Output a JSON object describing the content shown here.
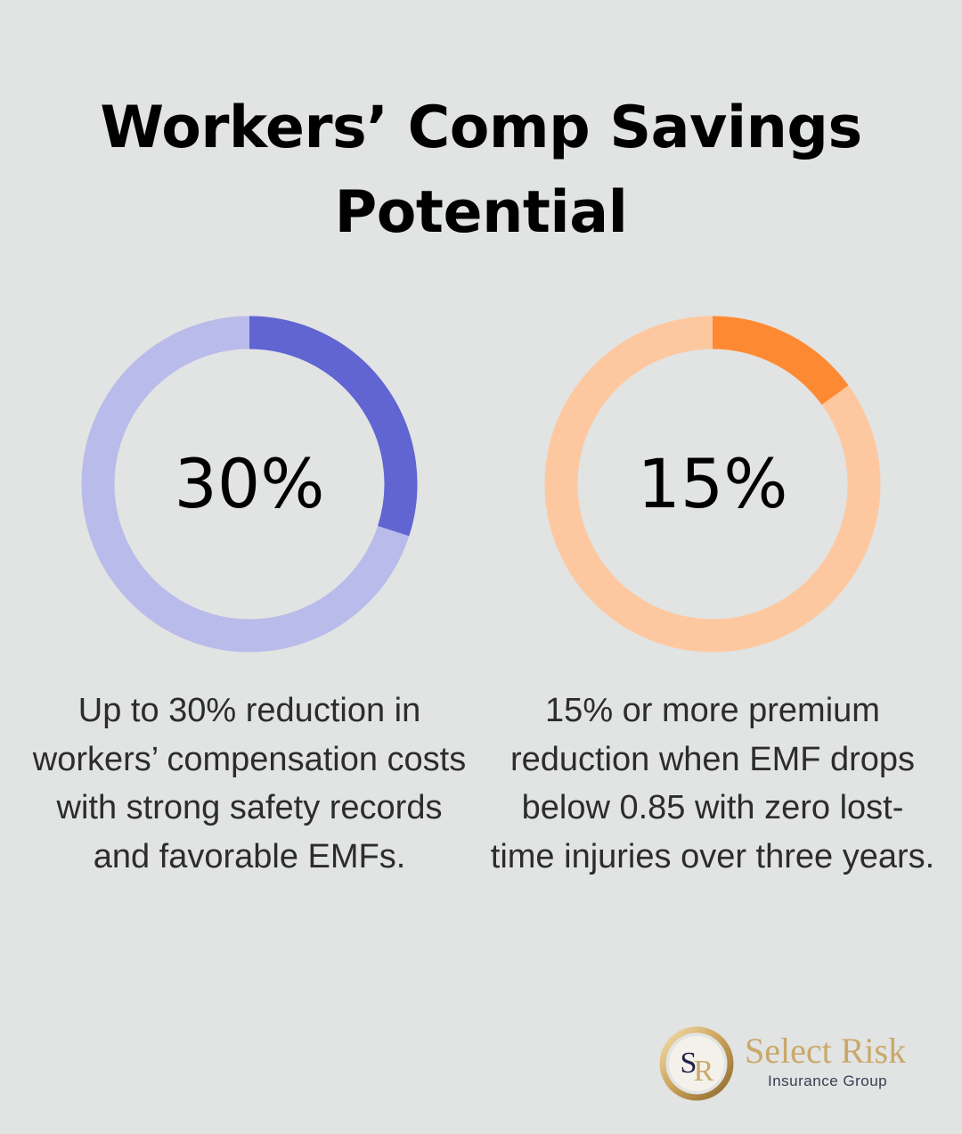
{
  "title": "Workers’ Comp Savings Potential",
  "chart_data": [
    {
      "type": "pie",
      "style": "donut",
      "value_percent": 30,
      "label": "30%",
      "description": "Up to 30% reduction in workers’ compensation costs with strong safety records and favorable EMFs.",
      "colors": {
        "fill": "#6165d1",
        "track": "#b9bbea"
      }
    },
    {
      "type": "pie",
      "style": "donut",
      "value_percent": 15,
      "label": "15%",
      "description": "15% or more premium reduction when EMF drops below 0.85 with zero lost-time injuries over three years.",
      "colors": {
        "fill": "#fd8a33",
        "track": "#fdc8a0"
      }
    }
  ],
  "logo": {
    "name": "Select Risk",
    "subtitle": "Insurance Group",
    "monogram": "SR",
    "colors": {
      "gold": "#c9a96a",
      "navy": "#1e2147"
    }
  }
}
